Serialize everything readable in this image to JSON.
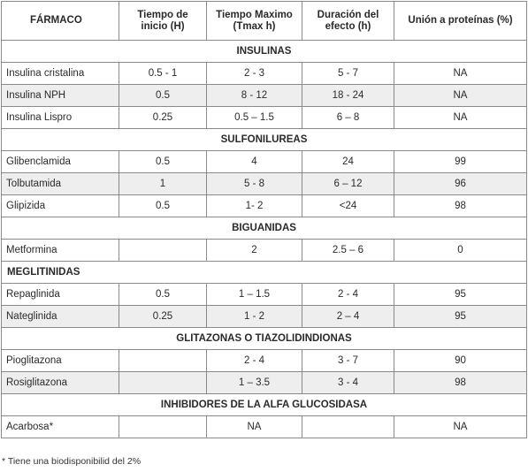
{
  "headers": [
    "FÁRMACO",
    "Tiempo de inicio (H)",
    "Tiempo Maximo (Tmax h)",
    "Duración del efecto (h)",
    "Unión a proteínas (%)"
  ],
  "sections": [
    {
      "title": "INSULINAS",
      "align": "center",
      "rows": [
        [
          "Insulina cristalina",
          "0.5 - 1",
          "2 - 3",
          "5 - 7",
          "NA"
        ],
        [
          "Insulina NPH",
          "0.5",
          "8 - 12",
          "18 - 24",
          "NA"
        ],
        [
          "Insulina Lispro",
          "0.25",
          "0.5 – 1.5",
          "6 – 8",
          "NA"
        ]
      ]
    },
    {
      "title": "SULFONILUREAS",
      "align": "center",
      "rows": [
        [
          "Glibenclamida",
          "0.5",
          "4",
          "24",
          "99"
        ],
        [
          "Tolbutamida",
          "1",
          "5 - 8",
          "6 – 12",
          "96"
        ],
        [
          "Glipizida",
          "0.5",
          "1- 2",
          "<24",
          "98"
        ]
      ]
    },
    {
      "title": "BIGUANIDAS",
      "align": "center",
      "rows": [
        [
          "Metformina",
          "",
          "2",
          "2.5 – 6",
          "0"
        ]
      ]
    },
    {
      "title": "MEGLITINIDAS",
      "align": "left",
      "rows": [
        [
          "Repaglinida",
          "0.5",
          "1 – 1.5",
          "2 - 4",
          "95"
        ],
        [
          "Nateglinida",
          "0.25",
          "1 - 2",
          "2 – 4",
          "95"
        ]
      ]
    },
    {
      "title": "GLITAZONAS O TIAZOLIDINDIONAS",
      "align": "center",
      "rows": [
        [
          "Pioglitazona",
          "",
          "2 - 4",
          "3 - 7",
          "90"
        ],
        [
          "Rosiglitazona",
          "",
          "1 – 3.5",
          "3 - 4",
          "98"
        ]
      ]
    },
    {
      "title": "INHIBIDORES DE LA ALFA GLUCOSIDASA",
      "align": "center",
      "rows": [
        [
          "Acarbosa*",
          "",
          "NA",
          "",
          "NA"
        ]
      ]
    }
  ],
  "footnote": "* Tiene una biodisponibilid del 2%"
}
